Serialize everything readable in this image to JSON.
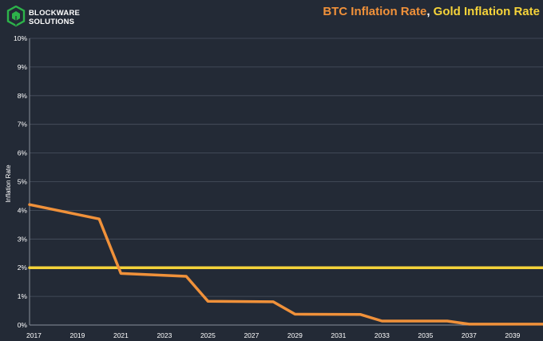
{
  "logo": {
    "name": "blockware-logo-icon",
    "line1": "BLOCKWARE",
    "line2": "SOLUTIONS",
    "color": "#2db34a"
  },
  "title": {
    "part1": "BTC Inflation Rate",
    "separator": ",",
    "part2": "Gold Inflation Rate",
    "color1": "#f0913a",
    "color2": "#f5d33a"
  },
  "chart_data": {
    "type": "line",
    "title": "BTC Inflation Rate, Gold Inflation Rate",
    "xlabel": "",
    "ylabel": "Inflation Rate",
    "xlim": [
      2016.8,
      2040.4
    ],
    "ylim": [
      0,
      10
    ],
    "x_ticks": [
      "2017",
      "2019",
      "2021",
      "2023",
      "2025",
      "2027",
      "2029",
      "2031",
      "2033",
      "2035",
      "2037",
      "2039"
    ],
    "y_ticks": [
      "0%",
      "1%",
      "2%",
      "3%",
      "4%",
      "5%",
      "6%",
      "7%",
      "8%",
      "9%",
      "10%"
    ],
    "grid": true,
    "background": "#232a36",
    "series": [
      {
        "name": "BTC Inflation Rate",
        "color": "#f0913a",
        "x": [
          2016.8,
          2020,
          2021,
          2024,
          2025,
          2028,
          2029,
          2032,
          2033,
          2036,
          2037,
          2040.4
        ],
        "y": [
          4.2,
          3.7,
          1.8,
          1.7,
          0.83,
          0.81,
          0.38,
          0.37,
          0.14,
          0.14,
          0.03,
          0.03
        ]
      },
      {
        "name": "Gold Inflation Rate",
        "color": "#f5d33a",
        "x": [
          2016.8,
          2040.4
        ],
        "y": [
          2.0,
          2.0
        ]
      }
    ]
  }
}
